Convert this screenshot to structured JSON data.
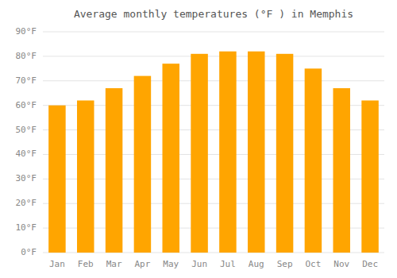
{
  "chart_data": {
    "type": "bar",
    "title": "Average monthly temperatures (°F ) in Memphis",
    "categories": [
      "Jan",
      "Feb",
      "Mar",
      "Apr",
      "May",
      "Jun",
      "Jul",
      "Aug",
      "Sep",
      "Oct",
      "Nov",
      "Dec"
    ],
    "values": [
      60,
      62,
      67,
      72,
      77,
      81,
      82,
      82,
      81,
      75,
      67,
      62
    ],
    "color": "#FFA500",
    "ylim": [
      0,
      90
    ],
    "yticks": [
      {
        "value": 0,
        "label": "0°F"
      },
      {
        "value": 10,
        "label": "10°F"
      },
      {
        "value": 20,
        "label": "20°F"
      },
      {
        "value": 30,
        "label": "30°F"
      },
      {
        "value": 40,
        "label": "40°F"
      },
      {
        "value": 50,
        "label": "50°F"
      },
      {
        "value": 60,
        "label": "60°F"
      },
      {
        "value": 70,
        "label": "70°F"
      },
      {
        "value": 80,
        "label": "80°F"
      },
      {
        "value": 90,
        "label": "90°F"
      }
    ],
    "grid": true
  }
}
